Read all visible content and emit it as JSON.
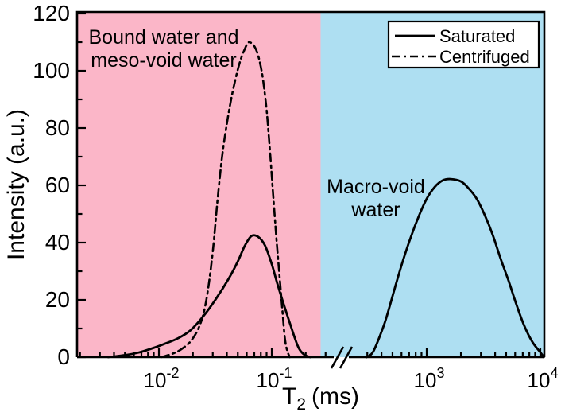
{
  "chart_data": {
    "type": "line",
    "title": "",
    "ylabel": "Intensity (a.u.)",
    "xlabel": {
      "base": "T",
      "sub": "2",
      "rest": "(ms)"
    },
    "ylim": [
      0,
      120
    ],
    "yticks": [
      0,
      20,
      40,
      60,
      80,
      100,
      120
    ],
    "y_minor_step": 10,
    "x_axis": {
      "scale": "log10-broken",
      "unit": "ms",
      "break_marker": "//",
      "segments": [
        {
          "exp_min": -2.725,
          "exp_max": -0.51,
          "major_ticks": [
            {
              "label_base": "10",
              "label_exp": "-2",
              "value_ms": 0.01,
              "exp": -2
            },
            {
              "label_base": "10",
              "label_exp": "-1",
              "value_ms": 0.1,
              "exp": -1
            }
          ]
        },
        {
          "exp_min": 2.45,
          "exp_max": 4.035,
          "major_ticks": [
            {
              "label_base": "10",
              "label_exp": "3",
              "value_ms": 1000,
              "exp": 3
            },
            {
              "label_base": "10",
              "label_exp": "4",
              "value_ms": 10000,
              "exp": 4
            }
          ]
        }
      ]
    },
    "regions": [
      {
        "label": [
          "Bound water and",
          "meso-void water"
        ],
        "color": "#FBB6C8",
        "exp_range": [
          -2.725,
          -0.567
        ],
        "x_range_ms": [
          0.0019,
          0.27
        ]
      },
      {
        "label": [
          "Macro-void",
          "water"
        ],
        "color": "#AEDFF2",
        "exp_range": [
          -0.567,
          4.035
        ],
        "x_range_ms": [
          0.27,
          10000
        ]
      }
    ],
    "legend": {
      "position": "top-right",
      "entries": [
        {
          "label": "Saturated",
          "line_style": "solid",
          "color": "#000000"
        },
        {
          "label": "Centrifuged",
          "line_style": "dash-dot",
          "color": "#000000"
        }
      ]
    },
    "series": [
      {
        "name": "Saturated",
        "line_style": "solid",
        "color": "#000000",
        "peaks": [
          {
            "center_ms": 0.066,
            "height": 42.5
          },
          {
            "center_ms": 1620,
            "height": 62
          }
        ],
        "segments_log10ms_intensity": [
          [
            [
              -2.45,
              0
            ],
            [
              -2.32,
              0.6
            ],
            [
              -2.18,
              1.6
            ],
            [
              -2.05,
              3.2
            ],
            [
              -1.94,
              4.8
            ],
            [
              -1.83,
              6.6
            ],
            [
              -1.72,
              9.4
            ],
            [
              -1.6,
              14.6
            ],
            [
              -1.49,
              20.6
            ],
            [
              -1.38,
              27.5
            ],
            [
              -1.3,
              33.5
            ],
            [
              -1.24,
              38.8
            ],
            [
              -1.18,
              42.3
            ],
            [
              -1.12,
              42.0
            ],
            [
              -1.06,
              39.0
            ],
            [
              -1.0,
              32.5
            ],
            [
              -0.95,
              25.6
            ],
            [
              -0.9,
              19.2
            ],
            [
              -0.85,
              13.1
            ],
            [
              -0.8,
              7.2
            ],
            [
              -0.76,
              3.1
            ],
            [
              -0.71,
              0.8
            ],
            [
              -0.66,
              0
            ]
          ],
          [
            [
              2.47,
              0
            ],
            [
              2.53,
              2
            ],
            [
              2.62,
              10.8
            ],
            [
              2.67,
              17.2
            ],
            [
              2.73,
              25.6
            ],
            [
              2.79,
              33.6
            ],
            [
              2.86,
              41.9
            ],
            [
              2.93,
              49.2
            ],
            [
              3.0,
              55.3
            ],
            [
              3.07,
              59.4
            ],
            [
              3.14,
              61.7
            ],
            [
              3.21,
              62.2
            ],
            [
              3.3,
              61.4
            ],
            [
              3.37,
              58.9
            ],
            [
              3.44,
              55.3
            ],
            [
              3.51,
              49.7
            ],
            [
              3.58,
              42.8
            ],
            [
              3.65,
              34.4
            ],
            [
              3.72,
              26.7
            ],
            [
              3.79,
              18.3
            ],
            [
              3.86,
              10.8
            ],
            [
              3.93,
              5.3
            ],
            [
              4.0,
              1.7
            ],
            [
              4.03,
              0
            ]
          ]
        ]
      },
      {
        "name": "Centrifuged",
        "line_style": "dash-dot",
        "color": "#000000",
        "peaks": [
          {
            "center_ms": 0.063,
            "height": 110
          }
        ],
        "segments_log10ms_intensity": [
          [
            [
              -1.98,
              0
            ],
            [
              -1.88,
              1.2
            ],
            [
              -1.8,
              2.8
            ],
            [
              -1.72,
              5.5
            ],
            [
              -1.65,
              10
            ],
            [
              -1.6,
              16
            ],
            [
              -1.56,
              25
            ],
            [
              -1.52,
              38
            ],
            [
              -1.48,
              55
            ],
            [
              -1.44,
              70
            ],
            [
              -1.4,
              81
            ],
            [
              -1.35,
              92
            ],
            [
              -1.29,
              102
            ],
            [
              -1.24,
              107.5
            ],
            [
              -1.2,
              110
            ],
            [
              -1.14,
              107.5
            ],
            [
              -1.09,
              100
            ],
            [
              -1.05,
              88
            ],
            [
              -1.02,
              74
            ],
            [
              -0.99,
              58
            ],
            [
              -0.96,
              42
            ],
            [
              -0.93,
              28
            ],
            [
              -0.905,
              16
            ],
            [
              -0.885,
              7
            ],
            [
              -0.865,
              2.5
            ],
            [
              -0.84,
              0
            ]
          ]
        ]
      }
    ]
  }
}
